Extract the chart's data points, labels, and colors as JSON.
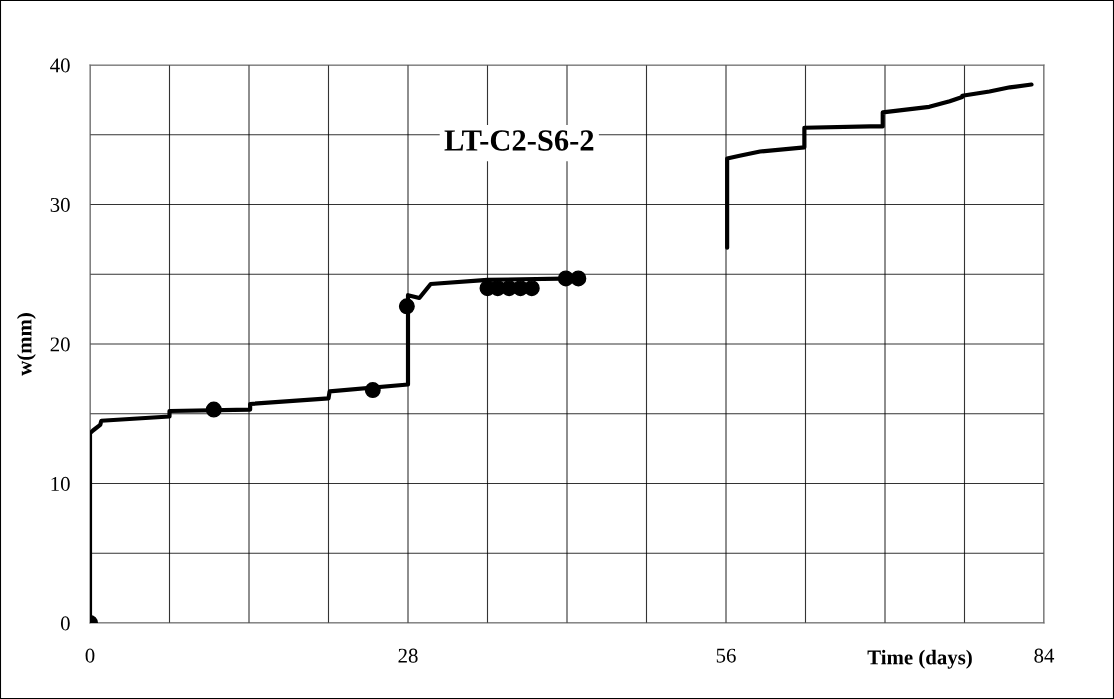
{
  "chart_data": {
    "type": "line",
    "title": "LT-C2-S6-2",
    "xlabel": "Time (days)",
    "ylabel": "w(mm)",
    "xlim": [
      0,
      84
    ],
    "ylim": [
      0,
      40
    ],
    "xticks": [
      0,
      {
        "value": 7,
        "label": null
      },
      {
        "value": 14,
        "label": null
      },
      {
        "value": 21,
        "label": null
      },
      28,
      {
        "value": 35,
        "label": null
      },
      {
        "value": 42,
        "label": null
      },
      {
        "value": 49,
        "label": null
      },
      56,
      {
        "value": 63,
        "label": null
      },
      {
        "value": 70,
        "label": null
      },
      {
        "value": 77,
        "label": null
      },
      84
    ],
    "yticks": [
      0,
      {
        "value": 5,
        "label": null
      },
      10,
      {
        "value": 15,
        "label": null
      },
      20,
      {
        "value": 25,
        "label": null
      },
      30,
      {
        "value": 35,
        "label": null
      },
      40
    ],
    "grid": true,
    "legend": false,
    "series": [
      {
        "color": "#000000",
        "marker": "none",
        "line_style": "solid",
        "x": [
          0,
          0,
          0.26,
          0.9,
          1.0,
          7.0,
          7.0,
          14.1,
          14.1,
          21.0,
          21.1,
          28.0,
          28.0,
          29.0,
          30.0,
          35.0,
          43.0,
          null,
          56.1,
          56.1,
          57.2,
          59.0,
          62.9,
          62.9,
          68.7,
          69.8,
          69.8,
          73.9,
          75.7,
          76.8,
          76.8,
          79.2,
          81.0,
          82.9
        ],
        "values": [
          0,
          13.6,
          13.8,
          14.2,
          14.5,
          14.8,
          15.2,
          15.3,
          15.7,
          16.1,
          16.6,
          17.1,
          23.5,
          23.3,
          24.3,
          24.6,
          24.7,
          null,
          26.9,
          33.3,
          33.5,
          33.8,
          34.1,
          35.5,
          35.6,
          35.6,
          36.6,
          37.0,
          37.4,
          37.7,
          37.8,
          38.1,
          38.4,
          38.6
        ]
      },
      {
        "type": "scatter",
        "color": "#000000",
        "marker": "circle",
        "x": [
          0,
          10.9,
          24.9,
          27.9,
          35.0,
          35.9,
          36.9,
          37.9,
          38.9,
          41.9,
          43.0
        ],
        "values": [
          0,
          15.3,
          16.7,
          22.7,
          24.0,
          24.0,
          24.0,
          24.0,
          24.0,
          24.7,
          24.7
        ]
      }
    ]
  }
}
